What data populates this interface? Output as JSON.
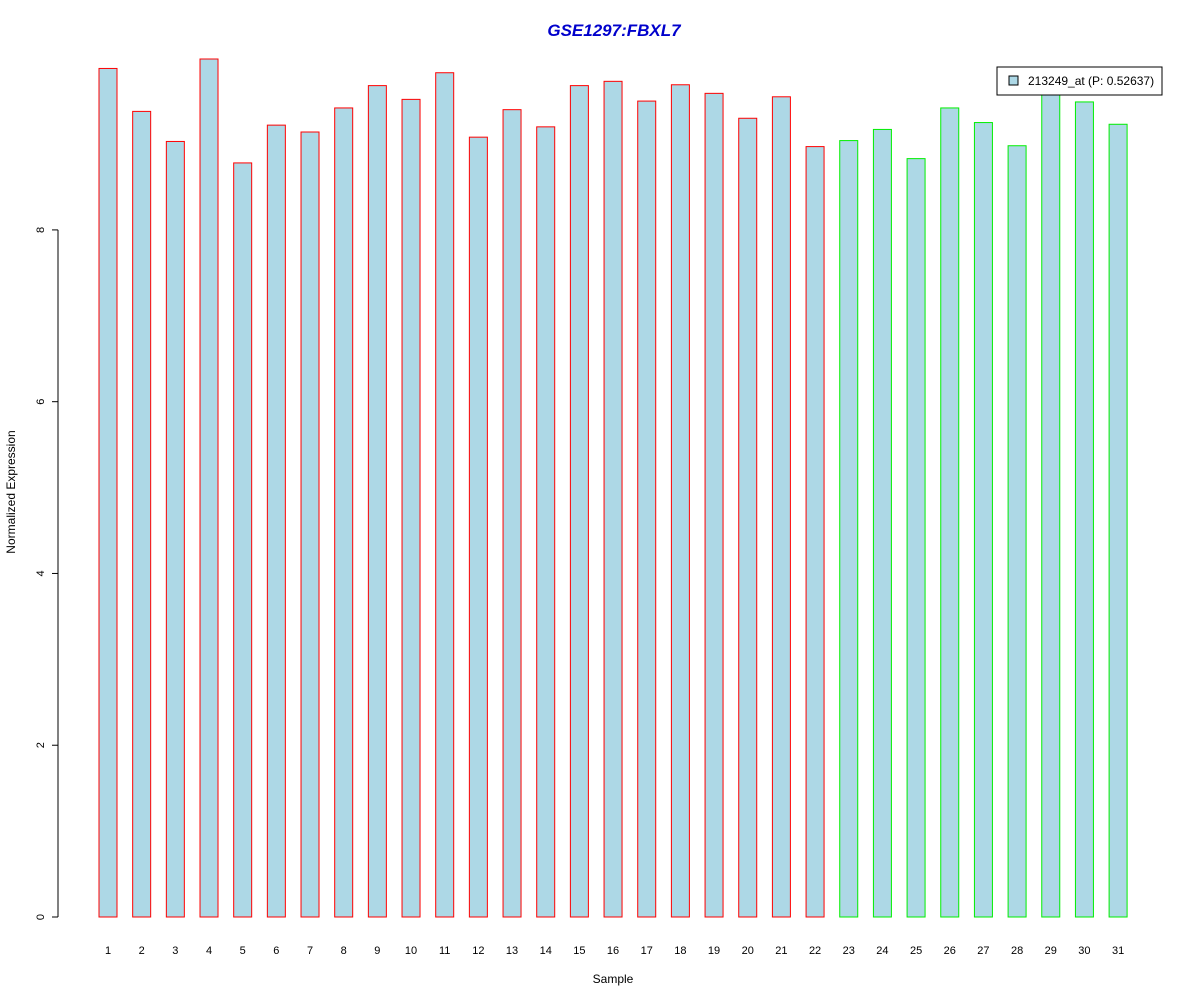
{
  "chart_data": {
    "type": "bar",
    "title": "GSE1297:FBXL7",
    "xlabel": "Sample",
    "ylabel": "Normalized Expression",
    "categories": [
      "1",
      "2",
      "3",
      "4",
      "5",
      "6",
      "7",
      "8",
      "9",
      "10",
      "11",
      "12",
      "13",
      "14",
      "15",
      "16",
      "17",
      "18",
      "19",
      "20",
      "21",
      "22",
      "23",
      "24",
      "25",
      "26",
      "27",
      "28",
      "29",
      "30",
      "31"
    ],
    "series": [
      {
        "name": "213249_at (P: 0.52637)",
        "values": [
          9.88,
          9.38,
          9.03,
          9.99,
          8.78,
          9.22,
          9.14,
          9.42,
          9.68,
          9.52,
          9.83,
          9.08,
          9.4,
          9.2,
          9.68,
          9.73,
          9.5,
          9.69,
          9.59,
          9.3,
          9.55,
          8.97,
          9.04,
          9.17,
          8.83,
          9.42,
          9.25,
          8.98,
          9.62,
          9.49,
          9.23
        ]
      }
    ],
    "group_edge_colors": [
      "#ff0000",
      "#ff0000",
      "#ff0000",
      "#ff0000",
      "#ff0000",
      "#ff0000",
      "#ff0000",
      "#ff0000",
      "#ff0000",
      "#ff0000",
      "#ff0000",
      "#ff0000",
      "#ff0000",
      "#ff0000",
      "#ff0000",
      "#ff0000",
      "#ff0000",
      "#ff0000",
      "#ff0000",
      "#ff0000",
      "#ff0000",
      "#ff0000",
      "#00ee00",
      "#00ee00",
      "#00ee00",
      "#00ee00",
      "#00ee00",
      "#00ee00",
      "#00ee00",
      "#00ee00",
      "#00ee00"
    ],
    "y_ticks": [
      0,
      2,
      4,
      6,
      8
    ],
    "ylim": [
      0,
      9.99
    ],
    "grid": false,
    "legend_position": "top-right",
    "colors": {
      "bar_fill": "#add8e6",
      "title": "#0000cc",
      "axis": "#000000"
    }
  }
}
